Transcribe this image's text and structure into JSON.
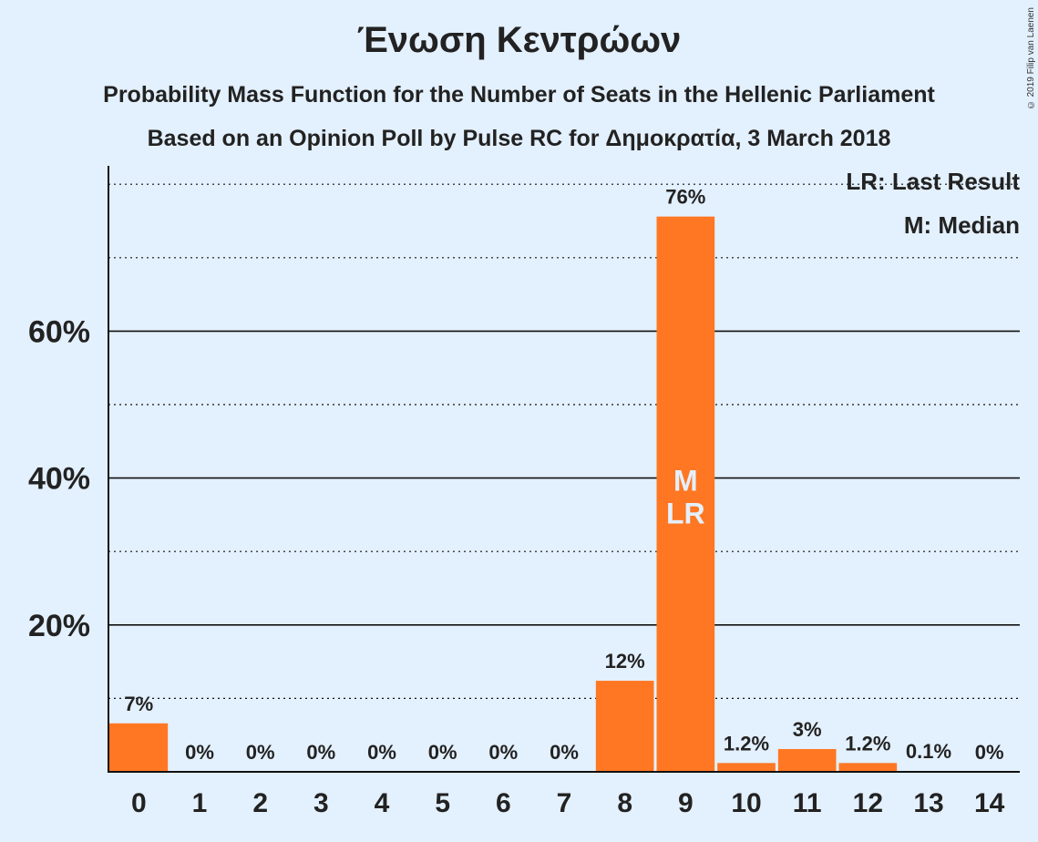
{
  "chart_data": {
    "type": "bar",
    "title": "Ένωση Κεντρώων",
    "subtitle": "Probability Mass Function for the Number of Seats in the Hellenic Parliament",
    "subtitle2": "Based on an Opinion Poll by Pulse RC for Δημοκρατία, 3 March 2018",
    "copyright": "© 2019 Filip van Laenen",
    "legend": [
      "LR: Last Result",
      "M: Median"
    ],
    "categories": [
      "0",
      "1",
      "2",
      "3",
      "4",
      "5",
      "6",
      "7",
      "8",
      "9",
      "10",
      "11",
      "12",
      "13",
      "14"
    ],
    "values": [
      6.6,
      0,
      0,
      0,
      0,
      0,
      0,
      0,
      12.4,
      75.6,
      1.2,
      3.1,
      1.2,
      0.1,
      0
    ],
    "labels": [
      "7%",
      "0%",
      "0%",
      "0%",
      "0%",
      "0%",
      "0%",
      "0%",
      "12%",
      "76%",
      "1.2%",
      "3%",
      "1.2%",
      "0.1%",
      "0%"
    ],
    "bar_annotations": {
      "9": [
        "M",
        "LR"
      ]
    },
    "yticks": [
      20,
      40,
      60
    ],
    "ytick_labels": [
      "20%",
      "40%",
      "60%"
    ],
    "ylim": [
      0,
      82
    ],
    "bar_color": "#ff7722"
  }
}
